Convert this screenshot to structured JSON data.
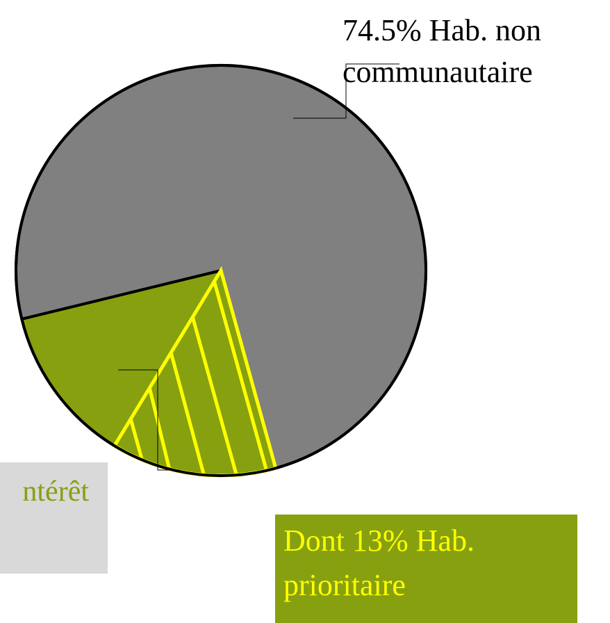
{
  "chart_data": {
    "type": "pie",
    "slices": [
      {
        "label_lines": [
          "74.5% Hab. non",
          "communautaire"
        ],
        "value": 74.5,
        "color": "#808080"
      },
      {
        "label_lines": [
          "ntérêt"
        ],
        "value": 25.5,
        "color": "#86a010"
      }
    ],
    "subset": {
      "label_lines": [
        "Dont 13% Hab.",
        "prioritaire"
      ],
      "value": 13,
      "color": "#ffff00"
    }
  }
}
